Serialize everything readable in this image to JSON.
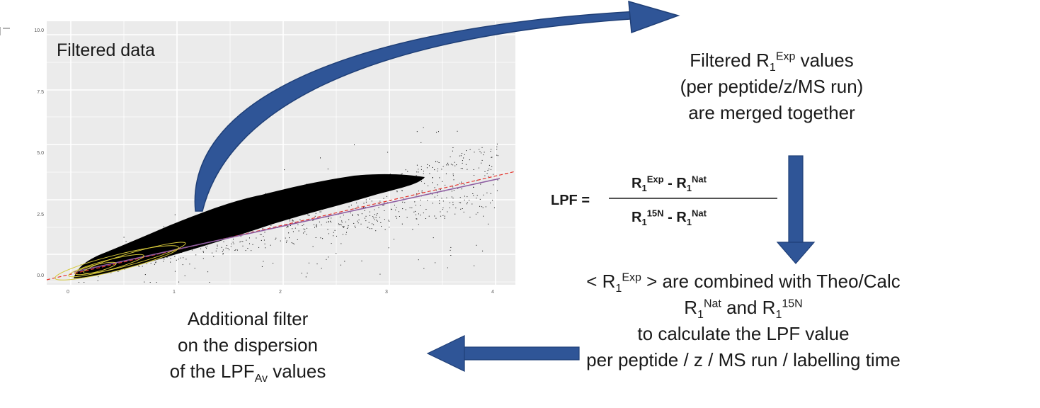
{
  "plot": {
    "label": "Filtered data",
    "y_ticks": [
      "0.0",
      "2.5",
      "5.0",
      "7.5",
      "10.0"
    ],
    "x_ticks": [
      "0",
      "1",
      "2",
      "3",
      "4"
    ],
    "colors": {
      "panel": "#ebebeb",
      "grid": "#ffffff",
      "points": "#000000",
      "fit": "#8e5ea2",
      "identity": "#e4332b",
      "contour": "#d6c83a"
    }
  },
  "arrow_color": "#2f5597",
  "box1": {
    "line1_prefix": "Filtered R",
    "line1_sub": "1",
    "line1_sup": "Exp",
    "line1_suffix": " values",
    "line2": "(per peptide/z/MS run)",
    "line3": "are merged together"
  },
  "formula": {
    "lhs": "LPF =",
    "num_a": "R",
    "num_a_sub": "1",
    "num_a_sup": "Exp",
    "num_sep": " - ",
    "num_b": "R",
    "num_b_sub": "1",
    "num_b_sup": "Nat",
    "den_a": "R",
    "den_a_sub": "1",
    "den_a_sup": "15N",
    "den_sep": " - ",
    "den_b": "R",
    "den_b_sub": "1",
    "den_b_sup": "Nat"
  },
  "box2": {
    "l1_prefix": "< R",
    "l1_sub": "1",
    "l1_sup": "Exp",
    "l1_suffix": " > are combined with Theo/Calc",
    "l2_a": "R",
    "l2_a_sub": "1",
    "l2_a_sup": "Nat",
    "l2_mid": " and R",
    "l2_b_sub": "1",
    "l2_b_sup": "15N",
    "l3": "to calculate the LPF value",
    "l4": "per peptide / z / MS run / labelling time"
  },
  "box3": {
    "l1": "Additional filter",
    "l2": "on the dispersion",
    "l3_prefix": "of the LPF",
    "l3_sub": "Av",
    "l3_suffix": " values"
  }
}
